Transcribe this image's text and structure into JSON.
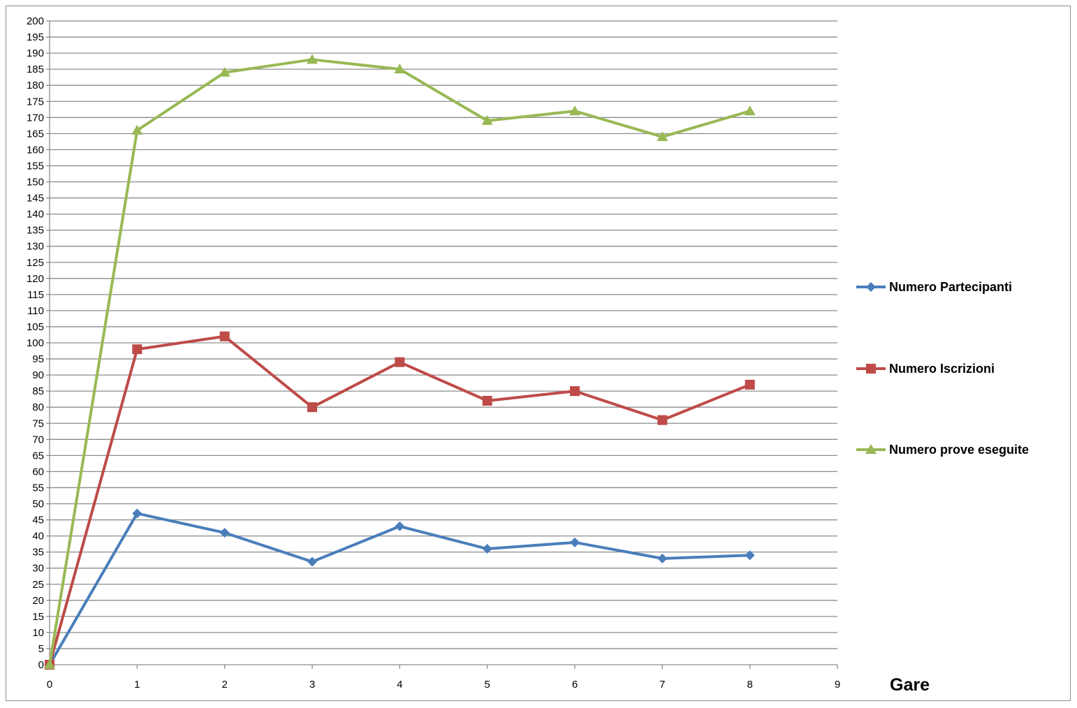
{
  "chart_data": {
    "type": "line",
    "title": "",
    "xlabel": "Gare",
    "ylabel": "",
    "xlim": [
      0,
      9
    ],
    "ylim": [
      0,
      200
    ],
    "x_ticks": [
      "0",
      "1",
      "2",
      "3",
      "4",
      "5",
      "6",
      "7",
      "8",
      "9"
    ],
    "y_ticks": [
      "0",
      "5",
      "10",
      "15",
      "20",
      "25",
      "30",
      "35",
      "40",
      "45",
      "50",
      "55",
      "60",
      "65",
      "70",
      "75",
      "80",
      "85",
      "90",
      "95",
      "100",
      "105",
      "110",
      "115",
      "120",
      "125",
      "130",
      "135",
      "140",
      "145",
      "150",
      "155",
      "160",
      "165",
      "170",
      "175",
      "180",
      "185",
      "190",
      "195",
      "200"
    ],
    "grid": "horizontal",
    "legend_position": "right",
    "x": [
      0,
      1,
      2,
      3,
      4,
      5,
      6,
      7,
      8
    ],
    "series": [
      {
        "name": "Numero Partecipanti",
        "color": "#4a7ebb",
        "marker": "diamond",
        "values": [
          0,
          47,
          41,
          32,
          43,
          36,
          38,
          33,
          34
        ]
      },
      {
        "name": "Numero Iscrizioni",
        "color": "#be4b48",
        "marker": "square",
        "values": [
          0,
          98,
          102,
          80,
          94,
          82,
          85,
          76,
          87
        ]
      },
      {
        "name": "Numero prove eseguite",
        "color": "#98b954",
        "marker": "triangle",
        "values": [
          0,
          166,
          184,
          188,
          185,
          169,
          172,
          164,
          172
        ]
      }
    ]
  }
}
